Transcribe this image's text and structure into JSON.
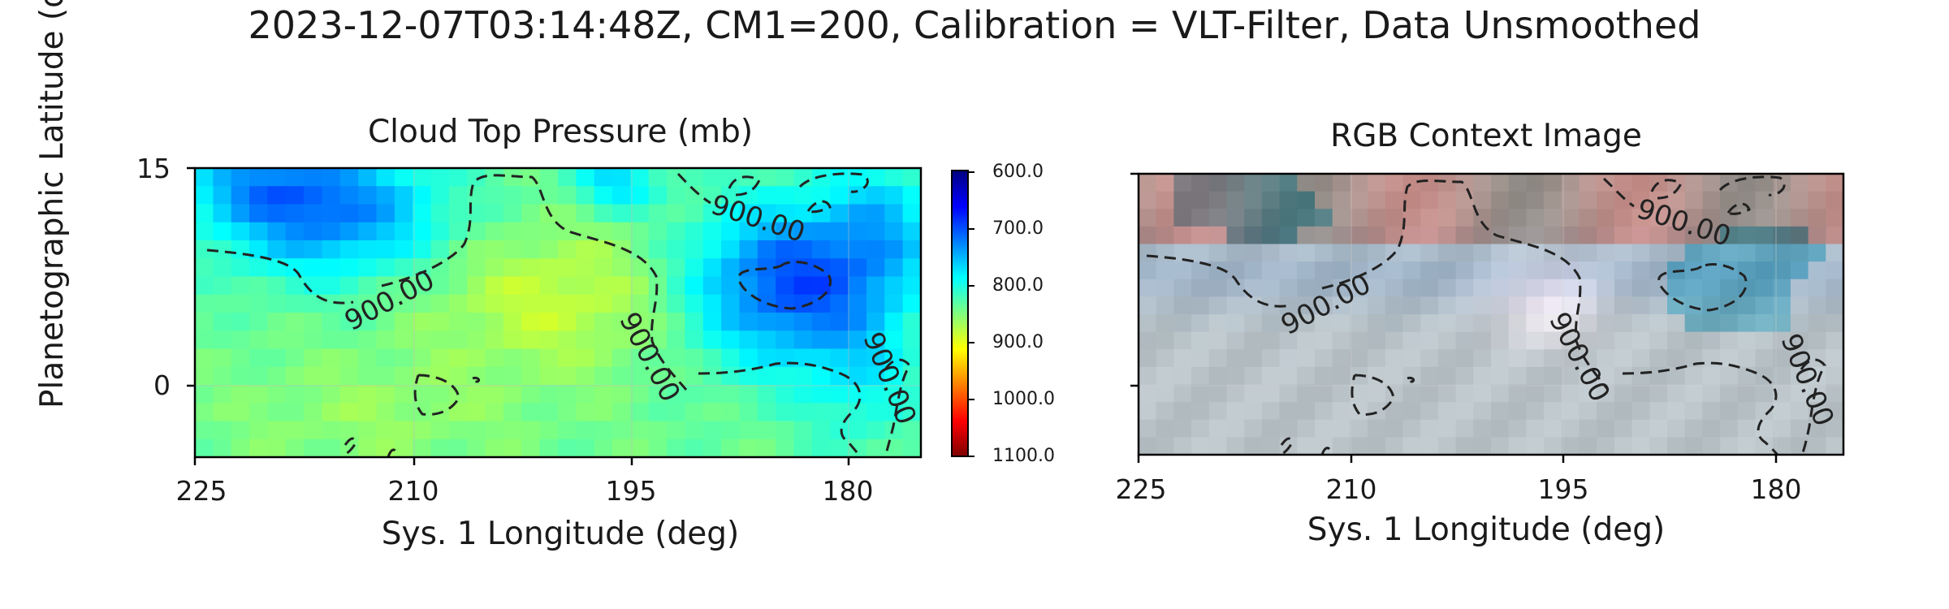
{
  "figure": {
    "suptitle": "2023-12-07T03:14:48Z, CM1=200, Calibration = VLT-Filter, Data Unsmoothed",
    "shared_ylabel": "Planetographic Latitude (deg)"
  },
  "chart_data": [
    {
      "type": "heatmap",
      "title": "Cloud Top Pressure (mb)",
      "xlabel": "Sys. 1 Longitude (deg)",
      "ylabel": "Planetographic Latitude (deg)",
      "x_ticks": [
        "225",
        "210",
        "195",
        "180"
      ],
      "x_tick_values": [
        225,
        210,
        195,
        180
      ],
      "y_ticks": [
        "15",
        "0"
      ],
      "y_tick_values": [
        15,
        0
      ],
      "xlim": [
        225,
        175
      ],
      "ylim": [
        -5,
        15
      ],
      "colormap": "jet_r",
      "colorbar": {
        "ticks": [
          "600.0",
          "700.0",
          "800.0",
          "900.0",
          "1000.0",
          "1100.0"
        ],
        "tick_values": [
          600,
          700,
          800,
          900,
          1000,
          1100
        ],
        "range": [
          600,
          1100
        ]
      },
      "contour_level": 900,
      "contour_labels": [
        "900.00",
        "900.00",
        "900.00",
        "900.00"
      ],
      "grid": true
    },
    {
      "type": "heatmap",
      "title": "RGB Context Image",
      "xlabel": "Sys. 1 Longitude (deg)",
      "x_ticks": [
        "225",
        "210",
        "195",
        "180"
      ],
      "x_tick_values": [
        225,
        210,
        195,
        180
      ],
      "xlim": [
        225,
        175
      ],
      "ylim": [
        -5,
        15
      ],
      "contour_level": 900,
      "contour_labels": [
        "900.00",
        "900.00",
        "900.00",
        "900.00"
      ],
      "grid": true
    }
  ],
  "colors": {
    "contour": "#222222",
    "axes": "#000000"
  }
}
